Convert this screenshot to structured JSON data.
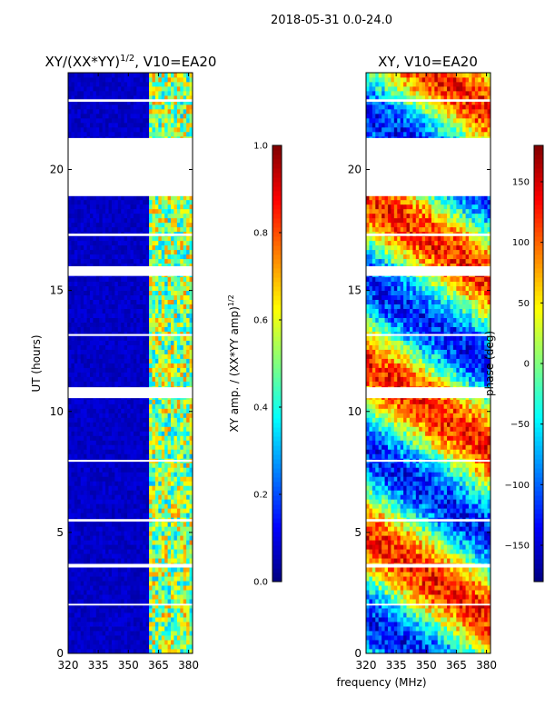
{
  "chart_data": {
    "type": "heatmap",
    "suptitle": "2018-05-31 0.0-24.0",
    "shared_xlabel": "frequency (MHz)",
    "panels": [
      {
        "title": "XY/(XX*YY)",
        "title_exp": "1/2",
        "title_suffix": ", V10=EA20",
        "ylabel": "UT (hours)",
        "xlim": [
          320,
          382
        ],
        "ylim": [
          0,
          24
        ],
        "xticks": [
          320,
          335,
          350,
          365,
          380
        ],
        "yticks": [
          0,
          5,
          10,
          15,
          20
        ],
        "colormap": "jet",
        "colorbar": {
          "label": "XY amp. / (XX*YY amp)",
          "label_exp": "1/2",
          "range": [
            0.0,
            1.0
          ],
          "ticks": [
            "0.0",
            "0.2",
            "0.4",
            "0.6",
            "0.8",
            "1.0"
          ],
          "tick_values": [
            0.0,
            0.2,
            0.4,
            0.6,
            0.8,
            1.0
          ]
        },
        "description": "mostly low values (~0.05) below 360 MHz, structured higher values (0.3-0.8) between 362 and 382 MHz"
      },
      {
        "title": "XY, V10=EA20",
        "ylabel": "",
        "xlim": [
          320,
          382
        ],
        "ylim": [
          0,
          24
        ],
        "xticks": [
          320,
          335,
          350,
          365,
          380
        ],
        "yticks": [
          0,
          5,
          10,
          15,
          20
        ],
        "colormap": "jet",
        "colorbar": {
          "label": "phase (deg)",
          "range": [
            -180,
            180
          ],
          "ticks": [
            "−150",
            "−100",
            "−50",
            "0",
            "50",
            "100",
            "150"
          ],
          "tick_values": [
            -150,
            -100,
            -50,
            0,
            50,
            100,
            150
          ]
        },
        "description": "phase values vary across full range -180 to 180 deg with time-dependent structure"
      }
    ],
    "data_gaps_hours": [
      [
        21.3,
        18.9
      ],
      [
        16.0,
        15.6
      ],
      [
        17.35,
        17.25
      ],
      [
        11.0,
        10.55
      ],
      [
        3.7,
        3.55
      ],
      [
        22.9,
        22.8
      ],
      [
        5.55,
        5.45
      ],
      [
        13.2,
        13.12
      ],
      [
        8.0,
        7.92
      ],
      [
        2.05,
        1.98
      ]
    ]
  }
}
